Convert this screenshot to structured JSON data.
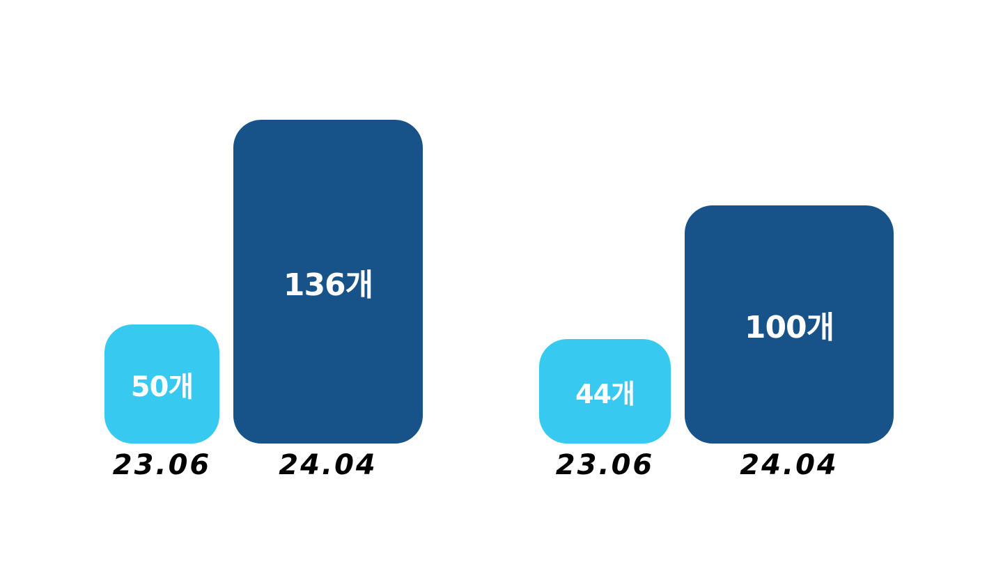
{
  "chart_data": [
    {
      "type": "bar",
      "categories": [
        "23.06",
        "24.04"
      ],
      "values": [
        50,
        136
      ],
      "value_labels": [
        "50개",
        "136개"
      ],
      "colors": [
        "#38c9f0",
        "#175389"
      ]
    },
    {
      "type": "bar",
      "categories": [
        "23.06",
        "24.04"
      ],
      "values": [
        44,
        100
      ],
      "value_labels": [
        "44개",
        "100개"
      ],
      "colors": [
        "#38c9f0",
        "#175389"
      ]
    }
  ]
}
